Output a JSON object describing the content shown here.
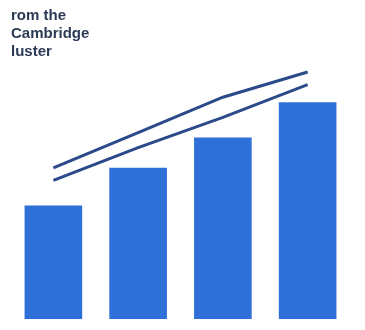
{
  "chart_data": {
    "type": "bar",
    "title": [
      "rom the",
      "Cambridge",
      "luster"
    ],
    "categories": [
      null,
      null,
      null,
      null
    ],
    "series": [
      {
        "type": "bar",
        "color": "#2e6fd8",
        "values": [
          45,
          60,
          72,
          86
        ]
      },
      {
        "type": "line",
        "color": "#2b4a8a",
        "marker": "none",
        "line_style": "solid",
        "values": [
          60,
          74,
          88,
          98
        ]
      },
      {
        "type": "line",
        "color": "#2b4a8a",
        "marker": "none",
        "line_style": "solid",
        "values": [
          55,
          68,
          80,
          93
        ]
      }
    ],
    "ylim": [
      0,
      100
    ],
    "grid": false,
    "tick_labels": false
  }
}
